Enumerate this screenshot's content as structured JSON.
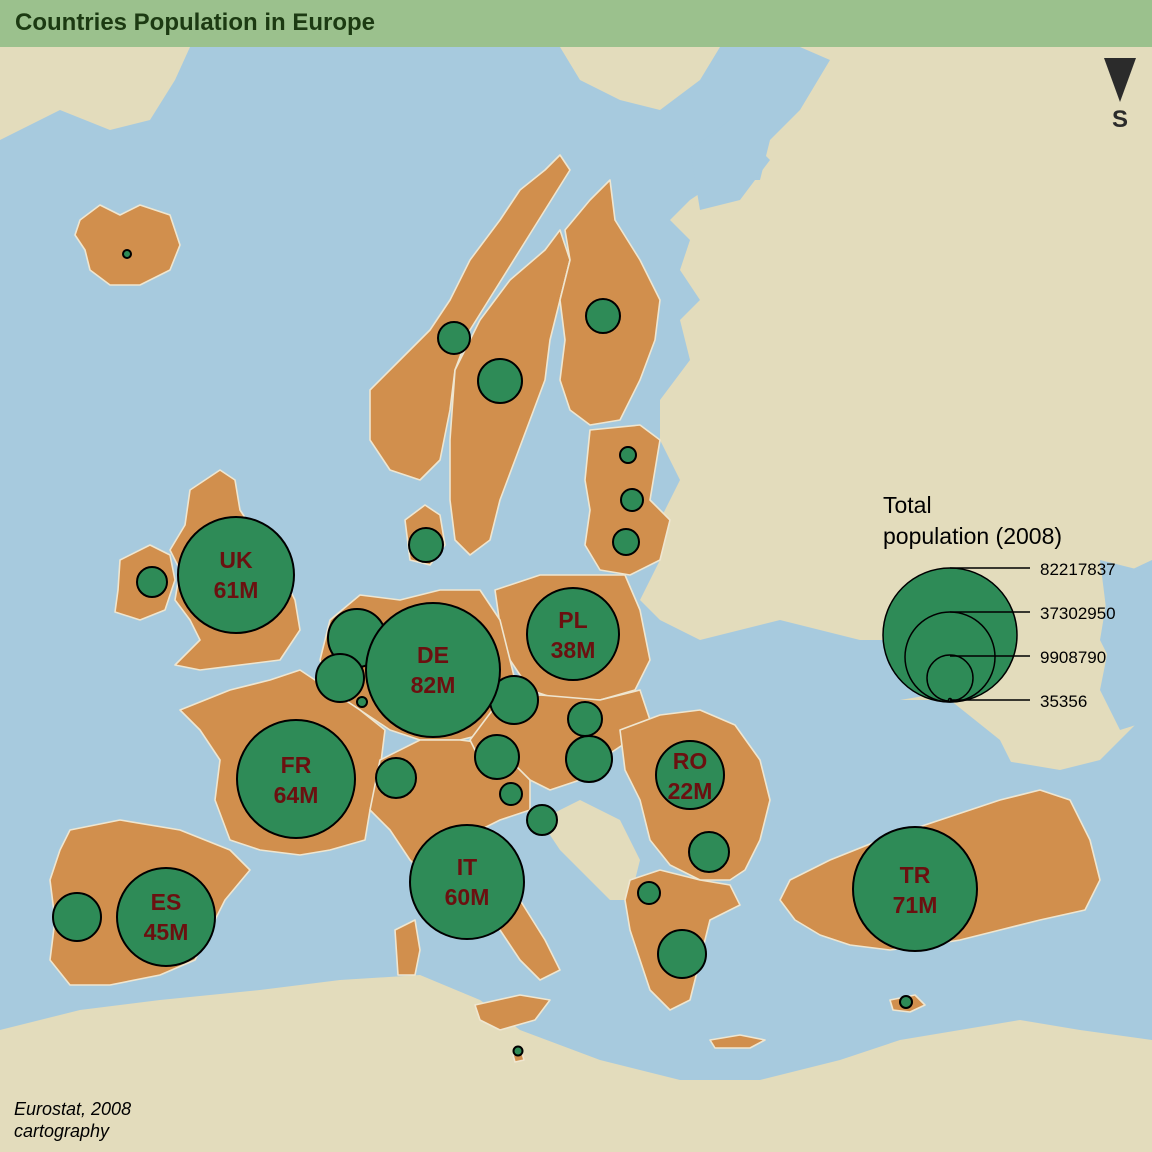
{
  "title": "Countries Population in Europe",
  "compass": {
    "letter": "S"
  },
  "source": {
    "line1": "Eurostat, 2008",
    "line2": "cartography"
  },
  "colors": {
    "sea": "#a7cade",
    "land_other": "#e3dcbc",
    "country": "#d18f4d",
    "bubble": "#2e8b57",
    "label": "#6b1010",
    "title_bar": "#9bc18d"
  },
  "legend": {
    "title_line1": "Total",
    "title_line2": "population (2008)",
    "values": [
      "82217837",
      "37302950",
      "9908790",
      "35356"
    ]
  },
  "bubbles": [
    {
      "label": "UK",
      "value": "61M"
    },
    {
      "label": "DE",
      "value": "82M"
    },
    {
      "label": "FR",
      "value": "64M"
    },
    {
      "label": "PL",
      "value": "38M"
    },
    {
      "label": "RO",
      "value": "22M"
    },
    {
      "label": "IT",
      "value": "60M"
    },
    {
      "label": "ES",
      "value": "45M"
    },
    {
      "label": "TR",
      "value": "71M"
    }
  ]
}
